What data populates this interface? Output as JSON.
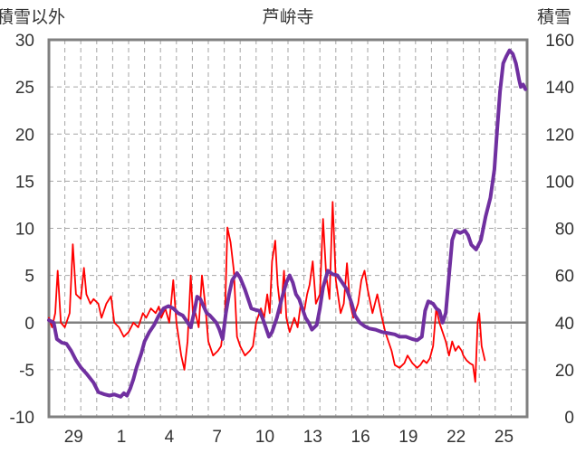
{
  "chart_data": {
    "type": "line",
    "title": "芦峅寺",
    "ylabel_left": "積雪以外",
    "ylabel_right": "積雪",
    "xlim": [
      27.5,
      27.0
    ],
    "x_ticks": [
      {
        "day": 29,
        "label": "29"
      },
      {
        "day": 1,
        "label": "1"
      },
      {
        "day": 4,
        "label": "4"
      },
      {
        "day": 7,
        "label": "7"
      },
      {
        "day": 10,
        "label": "10"
      },
      {
        "day": 13,
        "label": "13"
      },
      {
        "day": 16,
        "label": "16"
      },
      {
        "day": 19,
        "label": "19"
      },
      {
        "day": 22,
        "label": "22"
      },
      {
        "day": 25,
        "label": "25"
      }
    ],
    "y_left": {
      "min": -10,
      "max": 30,
      "ticks": [
        "-10",
        "-5",
        "0",
        "5",
        "10",
        "15",
        "20",
        "25",
        "30"
      ]
    },
    "y_right": {
      "min": 0,
      "max": 160,
      "ticks": [
        "0",
        "20",
        "40",
        "60",
        "80",
        "100",
        "120",
        "140",
        "160"
      ]
    },
    "grid": true,
    "series": [
      {
        "axis": "left",
        "color": "#ff0000",
        "points": [
          [
            0.0,
            0.5
          ],
          [
            0.2,
            -0.5
          ],
          [
            0.4,
            1.0
          ],
          [
            0.55,
            5.5
          ],
          [
            0.75,
            0.0
          ],
          [
            1.0,
            -0.5
          ],
          [
            1.3,
            1.0
          ],
          [
            1.5,
            8.3
          ],
          [
            1.7,
            3.0
          ],
          [
            2.0,
            2.5
          ],
          [
            2.2,
            5.8
          ],
          [
            2.35,
            3.0
          ],
          [
            2.6,
            2.0
          ],
          [
            2.8,
            2.5
          ],
          [
            3.1,
            2.0
          ],
          [
            3.3,
            0.5
          ],
          [
            3.6,
            2.0
          ],
          [
            3.9,
            2.8
          ],
          [
            4.1,
            0.0
          ],
          [
            4.4,
            -0.5
          ],
          [
            4.7,
            -1.5
          ],
          [
            5.0,
            -1.0
          ],
          [
            5.3,
            0.0
          ],
          [
            5.6,
            -0.5
          ],
          [
            5.9,
            1.0
          ],
          [
            6.1,
            0.5
          ],
          [
            6.4,
            1.5
          ],
          [
            6.7,
            1.0
          ],
          [
            6.9,
            1.7
          ],
          [
            7.05,
            0.5
          ],
          [
            7.3,
            1.5
          ],
          [
            7.55,
            0.0
          ],
          [
            7.8,
            4.5
          ],
          [
            8.0,
            0.0
          ],
          [
            8.3,
            -3.5
          ],
          [
            8.5,
            -5.0
          ],
          [
            8.7,
            -2.0
          ],
          [
            8.9,
            5.0
          ],
          [
            9.05,
            0.5
          ],
          [
            9.2,
            1.0
          ],
          [
            9.4,
            -0.5
          ],
          [
            9.6,
            5.0
          ],
          [
            9.8,
            2.0
          ],
          [
            10.0,
            -2.0
          ],
          [
            10.3,
            -3.5
          ],
          [
            10.6,
            -3.0
          ],
          [
            10.8,
            -2.5
          ],
          [
            11.05,
            1.0
          ],
          [
            11.2,
            10.1
          ],
          [
            11.4,
            8.5
          ],
          [
            11.6,
            5.5
          ],
          [
            11.8,
            -1.5
          ],
          [
            12.0,
            -2.5
          ],
          [
            12.3,
            -3.5
          ],
          [
            12.6,
            -3.0
          ],
          [
            12.8,
            -2.5
          ],
          [
            13.0,
            0.0
          ],
          [
            13.3,
            1.5
          ],
          [
            13.5,
            0.5
          ],
          [
            13.7,
            3.0
          ],
          [
            13.85,
            1.0
          ],
          [
            14.0,
            6.5
          ],
          [
            14.2,
            8.7
          ],
          [
            14.35,
            4.0
          ],
          [
            14.55,
            1.0
          ],
          [
            14.75,
            5.5
          ],
          [
            14.9,
            0.5
          ],
          [
            15.1,
            -1.0
          ],
          [
            15.4,
            0.5
          ],
          [
            15.6,
            -0.5
          ],
          [
            15.8,
            2.0
          ],
          [
            16.0,
            1.0
          ],
          [
            16.2,
            3.0
          ],
          [
            16.35,
            4.0
          ],
          [
            16.55,
            6.5
          ],
          [
            16.75,
            2.0
          ],
          [
            17.0,
            3.0
          ],
          [
            17.2,
            11.0
          ],
          [
            17.4,
            5.0
          ],
          [
            17.6,
            2.5
          ],
          [
            17.8,
            12.8
          ],
          [
            18.0,
            4.5
          ],
          [
            18.3,
            1.0
          ],
          [
            18.5,
            2.0
          ],
          [
            18.7,
            6.3
          ],
          [
            18.9,
            2.0
          ],
          [
            19.1,
            0.5
          ],
          [
            19.4,
            2.0
          ],
          [
            19.6,
            4.5
          ],
          [
            19.8,
            5.5
          ],
          [
            20.0,
            3.5
          ],
          [
            20.3,
            1.0
          ],
          [
            20.6,
            3.0
          ],
          [
            20.9,
            0.5
          ],
          [
            21.1,
            -1.0
          ],
          [
            21.3,
            -2.0
          ],
          [
            21.5,
            -3.0
          ],
          [
            21.7,
            -4.5
          ],
          [
            22.0,
            -4.8
          ],
          [
            22.3,
            -4.3
          ],
          [
            22.5,
            -3.5
          ],
          [
            22.8,
            -4.3
          ],
          [
            23.1,
            -4.8
          ],
          [
            23.3,
            -4.5
          ],
          [
            23.5,
            -4.0
          ],
          [
            23.7,
            -4.3
          ],
          [
            23.9,
            -3.8
          ],
          [
            24.1,
            -2.5
          ],
          [
            24.3,
            1.5
          ],
          [
            24.5,
            0.0
          ],
          [
            24.7,
            -1.0
          ],
          [
            24.9,
            -2.0
          ],
          [
            25.1,
            -3.5
          ],
          [
            25.3,
            -2.0
          ],
          [
            25.5,
            -3.0
          ],
          [
            25.7,
            -2.5
          ],
          [
            25.9,
            -3.0
          ],
          [
            26.0,
            -3.5
          ],
          [
            26.2,
            -4.0
          ],
          [
            26.4,
            -4.3
          ],
          [
            26.6,
            -4.5
          ],
          [
            26.75,
            -6.3
          ],
          [
            26.9,
            0.0
          ],
          [
            27.0,
            1.0
          ],
          [
            27.15,
            -2.5
          ],
          [
            27.35,
            -4.0
          ]
        ]
      },
      {
        "axis": "right",
        "color": "#7030a0",
        "points": [
          [
            0.0,
            41.0
          ],
          [
            0.3,
            40.0
          ],
          [
            0.5,
            33.0
          ],
          [
            0.8,
            31.5
          ],
          [
            1.1,
            31.0
          ],
          [
            1.4,
            28.0
          ],
          [
            1.7,
            24.0
          ],
          [
            2.0,
            21.0
          ],
          [
            2.4,
            18.0
          ],
          [
            2.8,
            14.5
          ],
          [
            3.1,
            10.5
          ],
          [
            3.5,
            9.5
          ],
          [
            3.8,
            9.0
          ],
          [
            4.1,
            9.5
          ],
          [
            4.5,
            8.5
          ],
          [
            4.7,
            10.0
          ],
          [
            4.9,
            9.0
          ],
          [
            5.1,
            12.0
          ],
          [
            5.3,
            16.0
          ],
          [
            5.5,
            21.0
          ],
          [
            5.8,
            27.0
          ],
          [
            6.0,
            32.0
          ],
          [
            6.3,
            36.0
          ],
          [
            6.6,
            39.0
          ],
          [
            6.9,
            43.0
          ],
          [
            7.2,
            46.0
          ],
          [
            7.5,
            47.0
          ],
          [
            7.8,
            46.0
          ],
          [
            8.1,
            44.0
          ],
          [
            8.4,
            43.0
          ],
          [
            8.6,
            41.0
          ],
          [
            8.9,
            38.0
          ],
          [
            9.1,
            44.0
          ],
          [
            9.3,
            51.0
          ],
          [
            9.5,
            50.0
          ],
          [
            9.7,
            47.0
          ],
          [
            9.9,
            44.0
          ],
          [
            10.1,
            43.0
          ],
          [
            10.3,
            41.5
          ],
          [
            10.5,
            40.0
          ],
          [
            10.7,
            37.0
          ],
          [
            10.9,
            33.0
          ],
          [
            11.1,
            44.0
          ],
          [
            11.3,
            52.0
          ],
          [
            11.5,
            58.0
          ],
          [
            11.8,
            61.0
          ],
          [
            12.0,
            59.0
          ],
          [
            12.3,
            54.0
          ],
          [
            12.5,
            50.0
          ],
          [
            12.7,
            46.0
          ],
          [
            12.9,
            45.5
          ],
          [
            13.2,
            45.0
          ],
          [
            13.4,
            42.0
          ],
          [
            13.6,
            38.0
          ],
          [
            13.8,
            34.0
          ],
          [
            14.0,
            36.0
          ],
          [
            14.3,
            42.0
          ],
          [
            14.6,
            50.0
          ],
          [
            14.9,
            57.0
          ],
          [
            15.1,
            60.0
          ],
          [
            15.3,
            57.0
          ],
          [
            15.5,
            52.0
          ],
          [
            15.7,
            50.0
          ],
          [
            15.9,
            46.0
          ],
          [
            16.1,
            42.0
          ],
          [
            16.3,
            40.0
          ],
          [
            16.5,
            37.0
          ],
          [
            16.8,
            39.0
          ],
          [
            17.0,
            46.0
          ],
          [
            17.2,
            55.0
          ],
          [
            17.5,
            62.0
          ],
          [
            17.8,
            60.5
          ],
          [
            18.1,
            60.0
          ],
          [
            18.4,
            57.0
          ],
          [
            18.7,
            54.0
          ],
          [
            19.0,
            48.0
          ],
          [
            19.2,
            43.0
          ],
          [
            19.5,
            40.0
          ],
          [
            19.8,
            38.5
          ],
          [
            20.1,
            37.5
          ],
          [
            20.5,
            37.0
          ],
          [
            20.9,
            36.0
          ],
          [
            21.3,
            35.5
          ],
          [
            21.7,
            35.0
          ],
          [
            22.0,
            34.0
          ],
          [
            22.4,
            34.0
          ],
          [
            22.8,
            33.0
          ],
          [
            23.1,
            32.5
          ],
          [
            23.4,
            34.0
          ],
          [
            23.6,
            45.0
          ],
          [
            23.8,
            49.0
          ],
          [
            24.1,
            48.0
          ],
          [
            24.3,
            46.0
          ],
          [
            24.5,
            45.0
          ],
          [
            24.7,
            40.0
          ],
          [
            24.9,
            44.0
          ],
          [
            25.1,
            60.0
          ],
          [
            25.3,
            75.0
          ],
          [
            25.5,
            79.0
          ],
          [
            25.8,
            78.0
          ],
          [
            26.1,
            79.0
          ],
          [
            26.3,
            77.0
          ],
          [
            26.5,
            73.0
          ],
          [
            26.8,
            71.0
          ],
          [
            27.1,
            75.0
          ],
          [
            27.4,
            85.0
          ],
          [
            27.7,
            93.0
          ],
          [
            27.95,
            105.0
          ],
          [
            28.1,
            120.0
          ],
          [
            28.3,
            138.0
          ],
          [
            28.5,
            150.0
          ],
          [
            28.7,
            153.0
          ],
          [
            28.9,
            155.5
          ],
          [
            29.1,
            154.0
          ],
          [
            29.3,
            150.0
          ],
          [
            29.5,
            143.0
          ],
          [
            29.6,
            140.0
          ],
          [
            29.75,
            141.0
          ],
          [
            29.9,
            139.0
          ]
        ]
      }
    ]
  }
}
